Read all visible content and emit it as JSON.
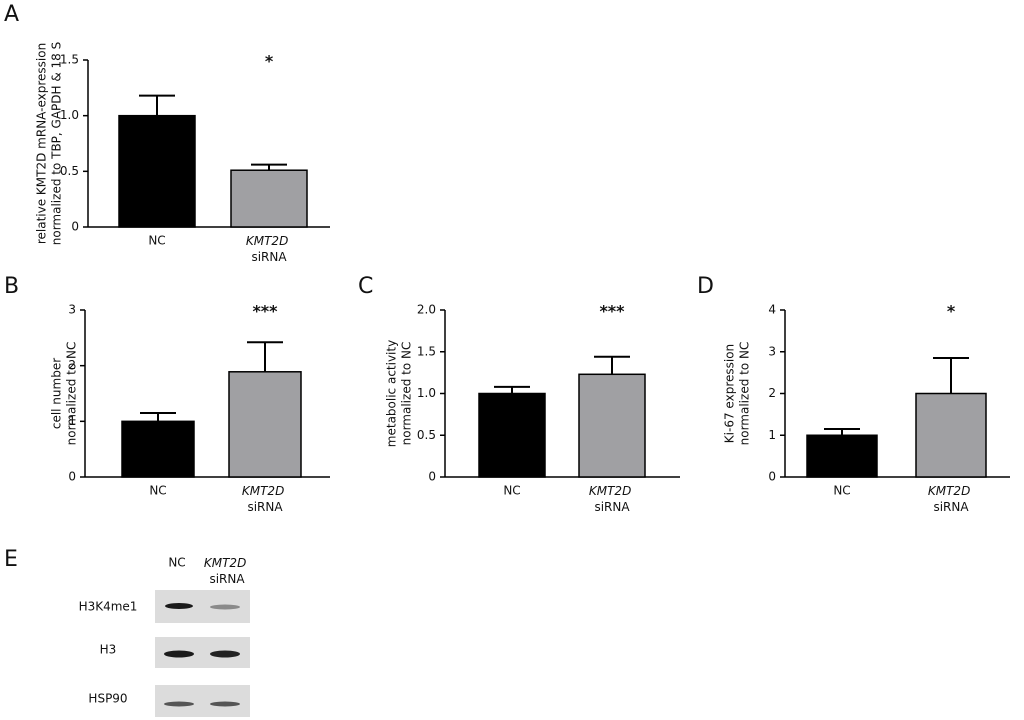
{
  "chart_data": [
    {
      "type": "bar",
      "panel": "A",
      "ylabel": [
        "relative KMT2D mRNA-expression",
        "normalized to TBP, GAPDH & 18 S"
      ],
      "categories": [
        "NC",
        "KMT2D siRNA"
      ],
      "values": [
        1.0,
        0.51
      ],
      "errors": [
        0.18,
        0.05
      ],
      "colors": [
        "#000000",
        "#a0a0a3"
      ],
      "ylim": [
        0,
        1.5
      ],
      "yticks": [
        0,
        0.5,
        {
          "value": 1,
          "label": "1.0"
        },
        1.5
      ],
      "annotation": "*"
    },
    {
      "type": "bar",
      "panel": "B",
      "ylabel": [
        "cell number",
        "normalized to NC"
      ],
      "categories": [
        "NC",
        "KMT2D siRNA"
      ],
      "values": [
        1.0,
        1.89
      ],
      "errors": [
        0.15,
        0.53
      ],
      "colors": [
        "#000000",
        "#a0a0a3"
      ],
      "ylim": [
        0,
        3
      ],
      "yticks": [
        0,
        1,
        2,
        3
      ],
      "annotation": "***"
    },
    {
      "type": "bar",
      "panel": "C",
      "ylabel": [
        "metabolic activity",
        "normalized to NC"
      ],
      "categories": [
        "NC",
        "KMT2D siRNA"
      ],
      "values": [
        1.0,
        1.23
      ],
      "errors": [
        0.08,
        0.21
      ],
      "colors": [
        "#000000",
        "#a0a0a3"
      ],
      "ylim": [
        0,
        2
      ],
      "yticks": [
        0,
        0.5,
        {
          "value": 1,
          "label": "1.0"
        },
        1.5,
        {
          "value": 2,
          "label": "2.0"
        }
      ],
      "annotation": "***"
    },
    {
      "type": "bar",
      "panel": "D",
      "ylabel": [
        "Ki-67 expression",
        "normalized to NC"
      ],
      "categories": [
        "NC",
        "KMT2D siRNA"
      ],
      "values": [
        1.0,
        2.0
      ],
      "errors": [
        0.15,
        0.85
      ],
      "colors": [
        "#000000",
        "#a0a0a3"
      ],
      "ylim": [
        0,
        4
      ],
      "yticks": [
        0,
        1,
        2,
        3,
        4
      ],
      "annotation": "*"
    }
  ],
  "blot": {
    "panel": "E",
    "lanes": [
      "NC",
      "KMT2D siRNA"
    ],
    "rows": [
      "H3K4me1",
      "H3",
      "HSP90"
    ]
  }
}
